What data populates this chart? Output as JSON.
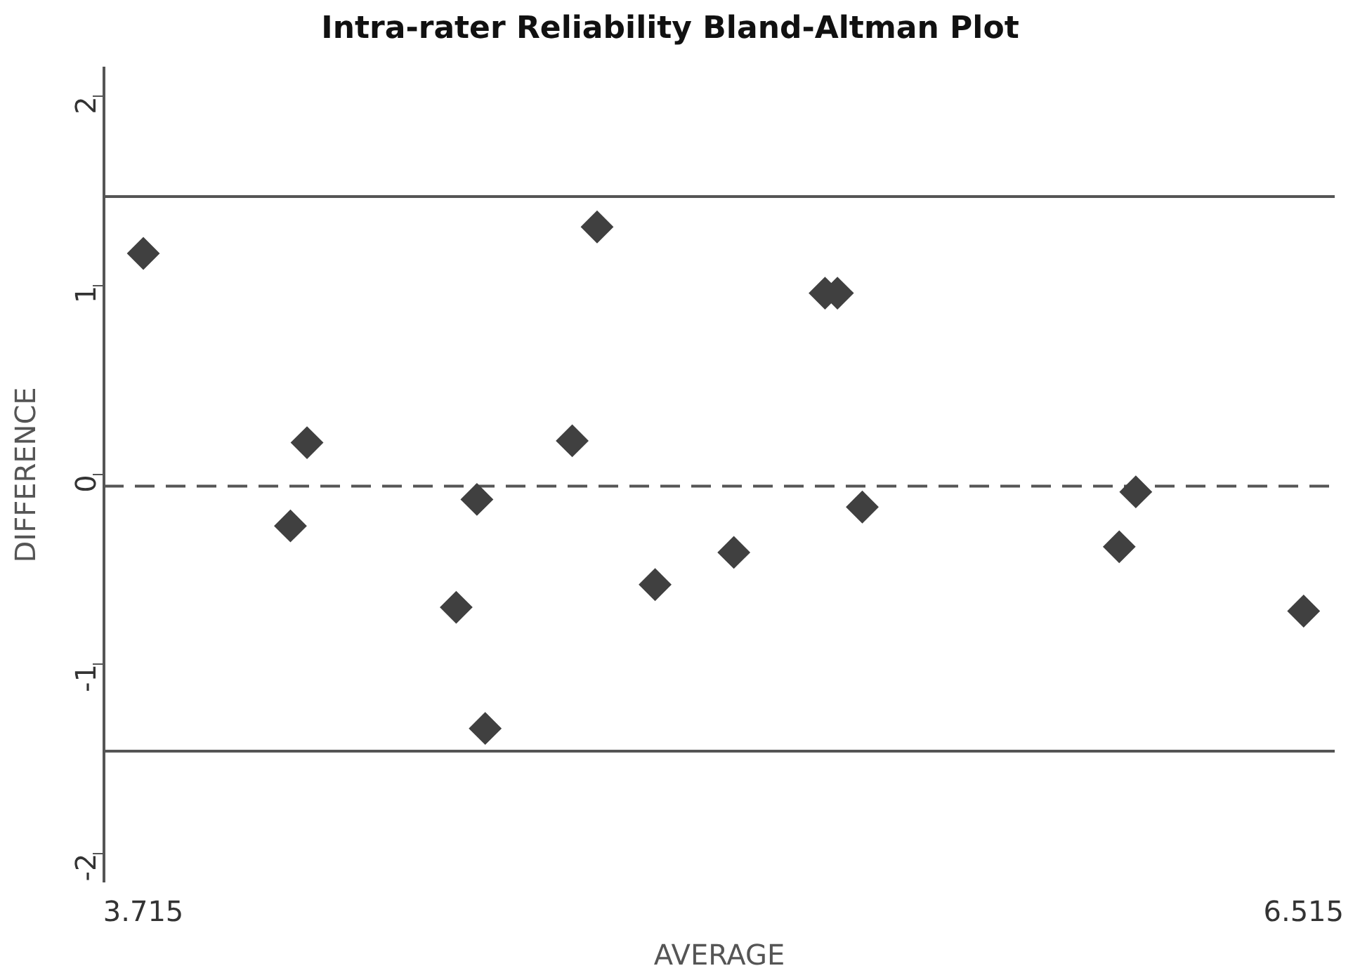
{
  "chart_data": {
    "type": "scatter",
    "title": "Intra-rater Reliability Bland-Altman Plot",
    "xlabel": "AVERAGE",
    "ylabel": "DIFFERENCE",
    "series": [
      {
        "color": "#404040",
        "x": [
          3.715,
          4.07,
          4.11,
          4.47,
          4.52,
          4.54,
          4.75,
          4.81,
          4.95,
          5.14,
          5.36,
          5.39,
          5.45,
          6.07,
          6.11,
          6.515
        ],
        "values": [
          1.17,
          -0.27,
          0.17,
          -0.7,
          -0.13,
          -1.34,
          0.18,
          1.31,
          -0.58,
          -0.41,
          0.96,
          0.96,
          -0.17,
          -0.38,
          -0.09,
          -0.72
        ]
      }
    ],
    "xlim": [
      3.62,
      6.59
    ],
    "xticks": [
      3.715,
      6.515
    ],
    "ylim": [
      -2.15,
      2.15
    ],
    "yticks": [
      -2,
      -1,
      0,
      1,
      2
    ],
    "ref_lines": [
      {
        "axis": "y",
        "value": 1.47,
        "color": "#555555",
        "line_style": "solid"
      },
      {
        "axis": "y",
        "value": -0.06,
        "color": "#555555",
        "line_style": "dashed"
      },
      {
        "axis": "y",
        "value": -1.46,
        "color": "#555555",
        "line_style": "solid"
      }
    ],
    "marker": "diamond",
    "grid": false,
    "legend": false
  }
}
